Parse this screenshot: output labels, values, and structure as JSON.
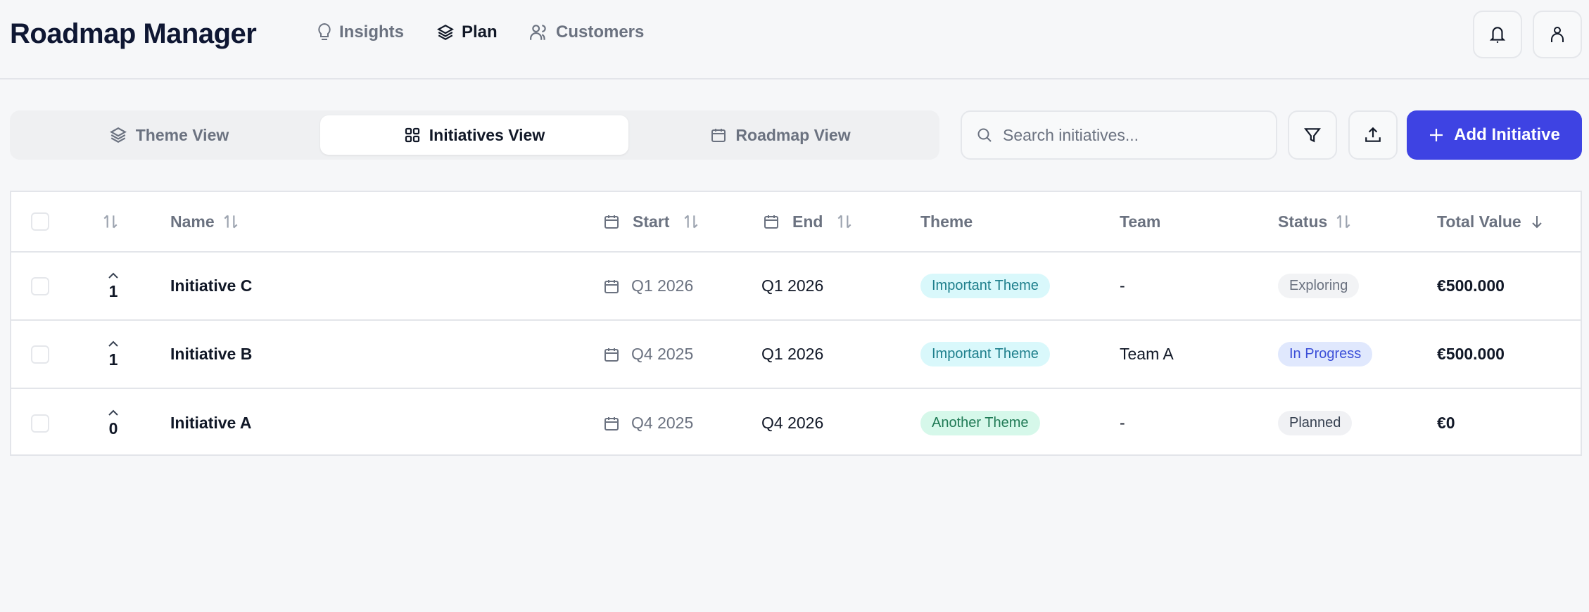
{
  "app": {
    "title": "Roadmap Manager"
  },
  "nav": [
    {
      "label": "Insights",
      "icon": "lightbulb-icon",
      "active": false
    },
    {
      "label": "Plan",
      "icon": "layers-icon",
      "active": true
    },
    {
      "label": "Customers",
      "icon": "users-icon",
      "active": false
    }
  ],
  "view_tabs": [
    {
      "label": "Theme View",
      "icon": "layers-icon",
      "active": false
    },
    {
      "label": "Initiatives View",
      "icon": "grid-icon",
      "active": true
    },
    {
      "label": "Roadmap View",
      "icon": "calendar-icon",
      "active": false
    }
  ],
  "search": {
    "placeholder": "Search initiatives...",
    "value": ""
  },
  "toolbar": {
    "add_label": "Add Initiative"
  },
  "colors": {
    "accent": "#3e43e3",
    "theme_important_bg": "#d9f8fb",
    "theme_another_bg": "#d6f8ea",
    "status_progress_bg": "#e0e8fd"
  },
  "table": {
    "columns": {
      "name": "Name",
      "start": "Start",
      "end": "End",
      "theme": "Theme",
      "team": "Team",
      "status": "Status",
      "total_value": "Total Value"
    },
    "rows": [
      {
        "votes": "1",
        "name": "Initiative C",
        "start": "Q1 2026",
        "end": "Q1 2026",
        "theme": "Important Theme",
        "team": "-",
        "status": "Exploring",
        "total_value": "€500.000"
      },
      {
        "votes": "1",
        "name": "Initiative B",
        "start": "Q4 2025",
        "end": "Q1 2026",
        "theme": "Important Theme",
        "team": "Team A",
        "status": "In Progress",
        "total_value": "€500.000"
      },
      {
        "votes": "0",
        "name": "Initiative A",
        "start": "Q4 2025",
        "end": "Q4 2026",
        "theme": "Another Theme",
        "team": "-",
        "status": "Planned",
        "total_value": "€0"
      }
    ]
  }
}
